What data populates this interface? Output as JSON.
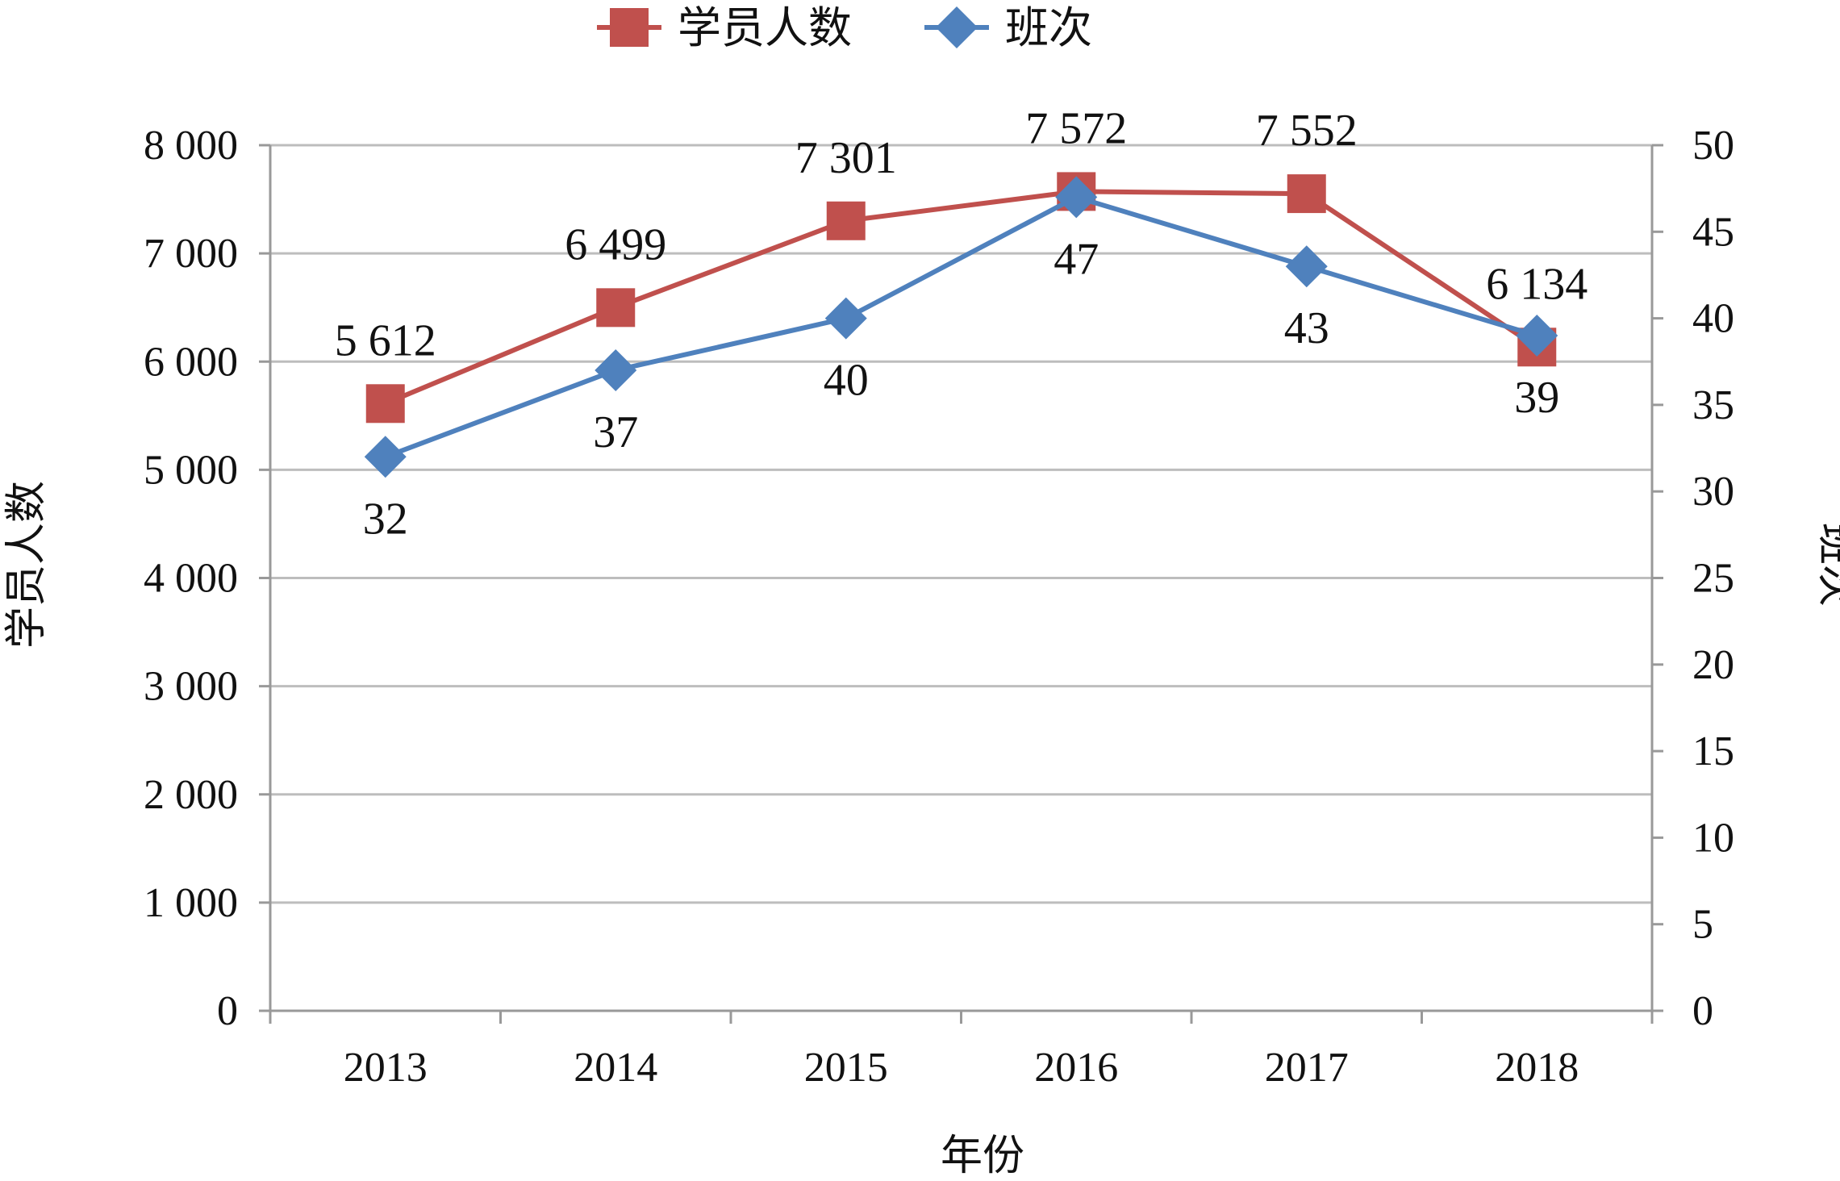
{
  "chart_data": {
    "type": "line",
    "title": "",
    "xlabel": "年份",
    "ylabel": "学员人数",
    "y2label": "班次",
    "categories": [
      "2013",
      "2014",
      "2015",
      "2016",
      "2017",
      "2018"
    ],
    "ylim": [
      0,
      8000
    ],
    "y2lim": [
      0,
      50
    ],
    "yticks": [
      {
        "value": 0,
        "label": "0"
      },
      {
        "value": 1000,
        "label": "1 000"
      },
      {
        "value": 2000,
        "label": "2 000"
      },
      {
        "value": 3000,
        "label": "3 000"
      },
      {
        "value": 4000,
        "label": "4 000"
      },
      {
        "value": 5000,
        "label": "5 000"
      },
      {
        "value": 6000,
        "label": "6 000"
      },
      {
        "value": 7000,
        "label": "7 000"
      },
      {
        "value": 8000,
        "label": "8 000"
      }
    ],
    "y2ticks": [
      {
        "value": 0,
        "label": "0"
      },
      {
        "value": 5,
        "label": "5"
      },
      {
        "value": 10,
        "label": "10"
      },
      {
        "value": 15,
        "label": "15"
      },
      {
        "value": 20,
        "label": "20"
      },
      {
        "value": 25,
        "label": "25"
      },
      {
        "value": 30,
        "label": "30"
      },
      {
        "value": 35,
        "label": "35"
      },
      {
        "value": 40,
        "label": "40"
      },
      {
        "value": 45,
        "label": "45"
      },
      {
        "value": 50,
        "label": "50"
      }
    ],
    "grid": true,
    "legend": "top",
    "series": [
      {
        "name": "学员人数",
        "axis": "left",
        "color": "#c0504d",
        "marker": "square",
        "values": [
          5612,
          6499,
          7301,
          7572,
          7552,
          6134
        ],
        "labels": [
          "5 612",
          "6 499",
          "7 301",
          "7 572",
          "7 552",
          "6 134"
        ]
      },
      {
        "name": "班次",
        "axis": "right",
        "color": "#4f81bd",
        "marker": "diamond",
        "values": [
          32,
          37,
          40,
          47,
          43,
          39
        ],
        "labels": [
          "32",
          "37",
          "40",
          "47",
          "43",
          "39"
        ]
      }
    ]
  }
}
